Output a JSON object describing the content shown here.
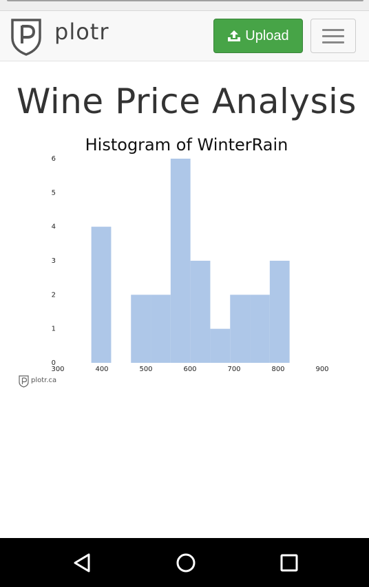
{
  "app": {
    "brand_name": "plotr",
    "upload_label": "Upload",
    "page_title": "Wine Price Analysis"
  },
  "colors": {
    "upload_button": "#47a447",
    "bar_fill": "#aec7e8",
    "navbar_bg": "#f8f8f8",
    "android_nav_bg": "#000000"
  },
  "icons": {
    "brand_logo": "plotr-shield-logo",
    "upload": "upload-icon",
    "menu": "hamburger-menu-icon",
    "back": "back-triangle-icon",
    "home": "home-circle-icon",
    "recents": "recents-square-icon"
  },
  "chart_data": {
    "type": "bar",
    "title": "Histogram of WinterRain",
    "xlabel": "",
    "ylabel": "",
    "xlim": [
      300,
      900
    ],
    "ylim": [
      0,
      6
    ],
    "xticks": [
      300,
      400,
      500,
      600,
      700,
      800,
      900
    ],
    "yticks": [
      0,
      1,
      2,
      3,
      4,
      5,
      6
    ],
    "grid": false,
    "bins": [
      {
        "start": 376,
        "end": 421,
        "count": 4
      },
      {
        "start": 421,
        "end": 466,
        "count": 0
      },
      {
        "start": 466,
        "end": 511,
        "count": 2
      },
      {
        "start": 511,
        "end": 556,
        "count": 2
      },
      {
        "start": 556,
        "end": 601,
        "count": 6
      },
      {
        "start": 601,
        "end": 646,
        "count": 3
      },
      {
        "start": 646,
        "end": 691,
        "count": 1
      },
      {
        "start": 691,
        "end": 736,
        "count": 2
      },
      {
        "start": 736,
        "end": 781,
        "count": 2
      },
      {
        "start": 781,
        "end": 826,
        "count": 3
      }
    ],
    "watermark": "plotr.ca"
  }
}
